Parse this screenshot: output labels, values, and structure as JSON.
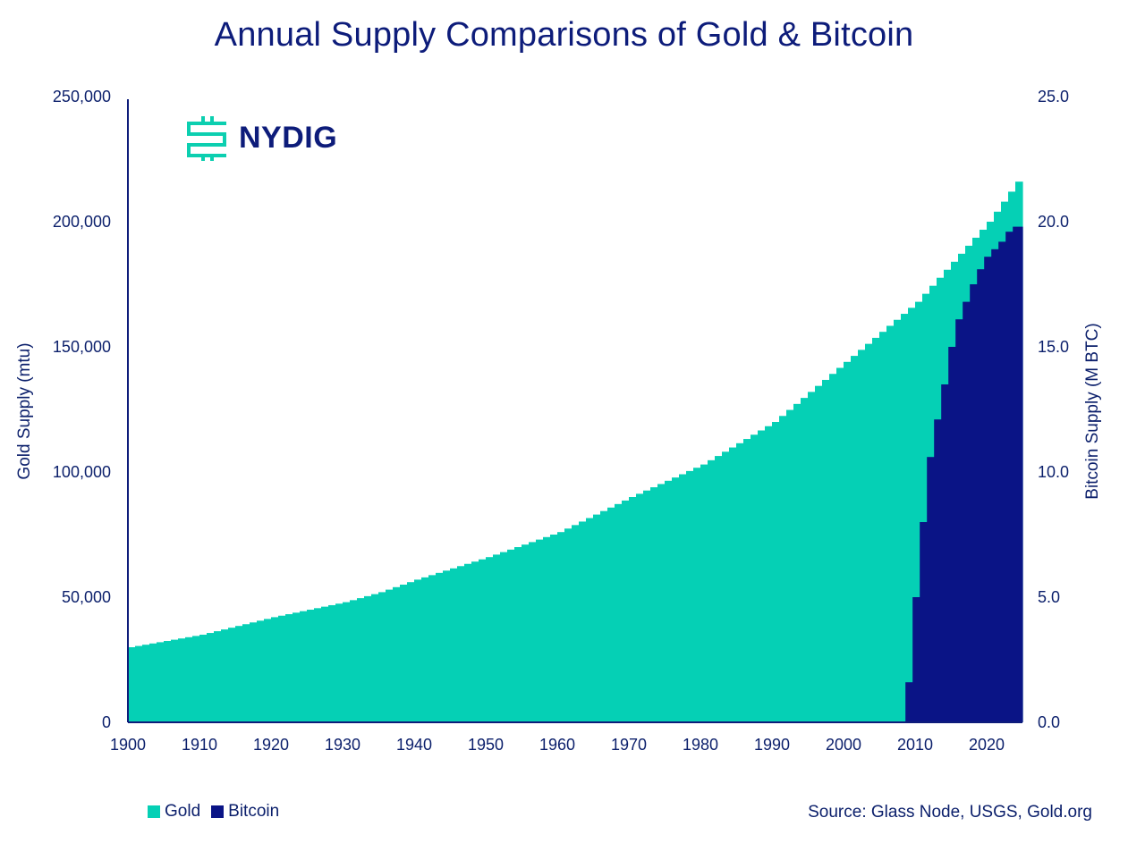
{
  "title": "Annual Supply Comparisons of Gold & Bitcoin",
  "logo": {
    "text": "NYDIG",
    "icon": "nydig-logo-icon",
    "color": "#0ccfb0"
  },
  "source": "Source: Glass Node, USGS, Gold.org",
  "colors": {
    "gold": "#05d0b5",
    "bitcoin": "#0a1486",
    "text": "#0b1f6b"
  },
  "chart_data": {
    "type": "bar",
    "title": "Annual Supply Comparisons of Gold & Bitcoin",
    "ylabel": "Gold Supply (mtu)",
    "y2label": "Bitcoin Supply (M BTC)",
    "ylim": [
      0,
      250000
    ],
    "y2lim": [
      0,
      25
    ],
    "xlim": [
      1900,
      2024
    ],
    "x_ticks": [
      "1900",
      "1910",
      "1920",
      "1930",
      "1940",
      "1950",
      "1960",
      "1970",
      "1980",
      "1990",
      "2000",
      "2010",
      "2020"
    ],
    "y_ticks": [
      "0",
      "50,000",
      "100,000",
      "150,000",
      "200,000",
      "250,000"
    ],
    "y2_ticks": [
      "0.0",
      "5.0",
      "10.0",
      "15.0",
      "20.0",
      "25.0"
    ],
    "grid": false,
    "legend": "bottom-left",
    "legend_entries": [
      "Gold",
      "Bitcoin"
    ],
    "gold_knots": [
      [
        1900,
        30000
      ],
      [
        1910,
        35000
      ],
      [
        1920,
        42000
      ],
      [
        1930,
        48000
      ],
      [
        1935,
        52000
      ],
      [
        1940,
        57000
      ],
      [
        1950,
        66000
      ],
      [
        1960,
        76000
      ],
      [
        1970,
        90000
      ],
      [
        1980,
        103000
      ],
      [
        1990,
        120000
      ],
      [
        2000,
        144000
      ],
      [
        2010,
        168000
      ],
      [
        2020,
        200000
      ],
      [
        2024,
        216000
      ]
    ],
    "series": [
      {
        "name": "Gold",
        "axis": "left",
        "x_start": 1900,
        "values": []
      },
      {
        "name": "Bitcoin",
        "axis": "right",
        "x": [
          2009,
          2010,
          2011,
          2012,
          2013,
          2014,
          2015,
          2016,
          2017,
          2018,
          2019,
          2020,
          2021,
          2022,
          2023,
          2024
        ],
        "values": [
          1.6,
          5.0,
          8.0,
          10.6,
          12.1,
          13.5,
          15.0,
          16.1,
          16.8,
          17.5,
          18.1,
          18.6,
          18.9,
          19.2,
          19.6,
          19.8
        ]
      }
    ]
  }
}
